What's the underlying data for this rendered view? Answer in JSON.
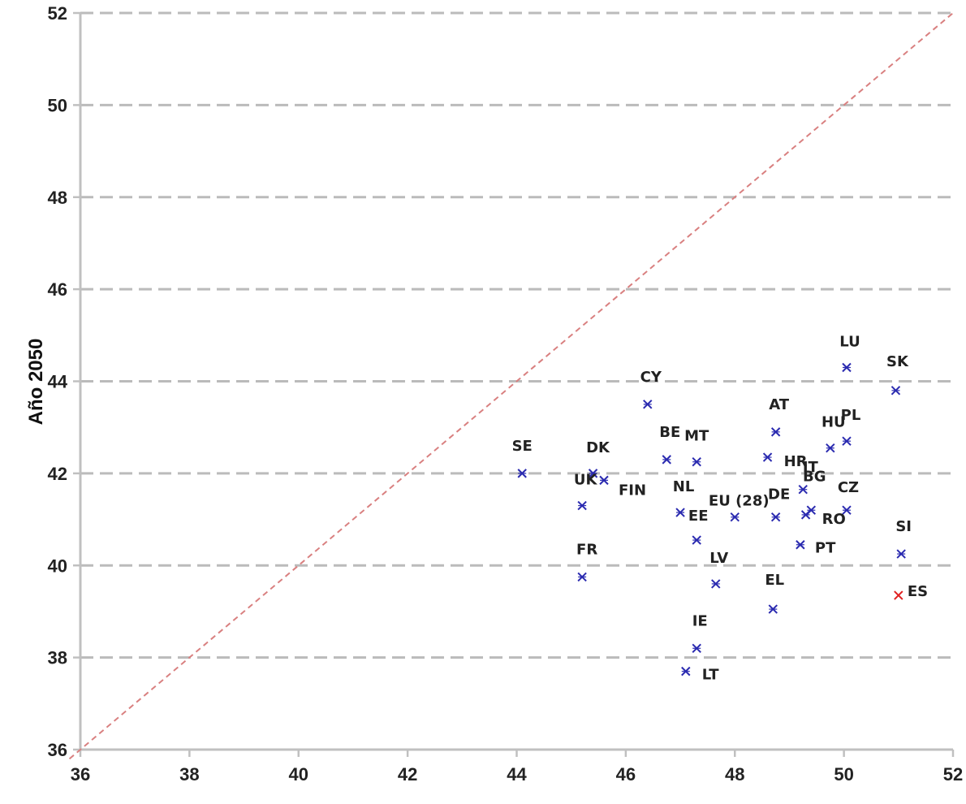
{
  "chart_data": {
    "type": "scatter",
    "title": "",
    "xlabel": "",
    "ylabel": "Año 2050",
    "xlim": [
      36,
      52
    ],
    "ylim": [
      36,
      52
    ],
    "x_ticks": [
      36,
      38,
      40,
      42,
      44,
      46,
      48,
      50,
      52
    ],
    "y_ticks": [
      36,
      38,
      40,
      42,
      44,
      46,
      48,
      50,
      52
    ],
    "grid": "horizontal-dashed",
    "reference_line": {
      "style": "dashed",
      "from": [
        36,
        36
      ],
      "to": [
        52,
        52
      ]
    },
    "colors": {
      "default": "#2b2bb0",
      "highlight": "#e02020",
      "reference": "#d98080",
      "grid": "#bbbbbb"
    },
    "points": [
      {
        "label": "SE",
        "x": 44.1,
        "y": 42.0
      },
      {
        "label": "DK",
        "x": 45.4,
        "y": 42.0
      },
      {
        "label": "UK",
        "x": 45.2,
        "y": 41.3
      },
      {
        "label": "FIN",
        "x": 45.6,
        "y": 41.85
      },
      {
        "label": "FR",
        "x": 45.2,
        "y": 39.75
      },
      {
        "label": "CY",
        "x": 46.4,
        "y": 43.5
      },
      {
        "label": "BE",
        "x": 46.75,
        "y": 42.3
      },
      {
        "label": "MT",
        "x": 47.3,
        "y": 42.25
      },
      {
        "label": "NL",
        "x": 47.0,
        "y": 41.15
      },
      {
        "label": "EE",
        "x": 47.3,
        "y": 40.55
      },
      {
        "label": "LV",
        "x": 47.65,
        "y": 39.6
      },
      {
        "label": "IE",
        "x": 47.3,
        "y": 38.2
      },
      {
        "label": "LT",
        "x": 47.1,
        "y": 37.7
      },
      {
        "label": "EU (28)",
        "x": 48.0,
        "y": 41.05
      },
      {
        "label": "AT",
        "x": 48.75,
        "y": 42.9
      },
      {
        "label": "HR",
        "x": 48.6,
        "y": 42.35
      },
      {
        "label": "DE",
        "x": 48.75,
        "y": 41.05
      },
      {
        "label": "EL",
        "x": 48.7,
        "y": 39.05
      },
      {
        "label": "IT",
        "x": 49.4,
        "y": 41.2
      },
      {
        "label": "BG",
        "x": 49.25,
        "y": 41.65
      },
      {
        "label": "RO",
        "x": 49.3,
        "y": 41.1
      },
      {
        "label": "PT",
        "x": 49.2,
        "y": 40.45
      },
      {
        "label": "HU",
        "x": 49.75,
        "y": 42.55
      },
      {
        "label": "PL",
        "x": 50.05,
        "y": 42.7
      },
      {
        "label": "CZ",
        "x": 50.05,
        "y": 41.2
      },
      {
        "label": "LU",
        "x": 50.05,
        "y": 44.3
      },
      {
        "label": "SK",
        "x": 50.95,
        "y": 43.8
      },
      {
        "label": "SI",
        "x": 51.05,
        "y": 40.25
      },
      {
        "label": "ES",
        "x": 51.0,
        "y": 39.35,
        "highlight": true
      }
    ]
  }
}
